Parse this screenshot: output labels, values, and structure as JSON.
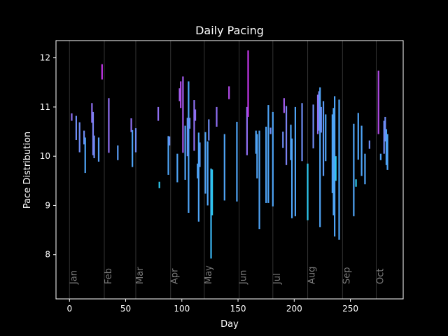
{
  "chart_data": {
    "type": "bar",
    "title": "Daily Pacing",
    "xlabel": "Day",
    "ylabel": "Pace Distribution",
    "xlim": [
      -12,
      297
    ],
    "ylim": [
      7.1,
      12.35
    ],
    "xticks": [
      0,
      50,
      100,
      150,
      200,
      250
    ],
    "yticks": [
      8,
      9,
      10,
      11,
      12
    ],
    "month_markers": [
      {
        "label": "Jan",
        "day": 0
      },
      {
        "label": "Feb",
        "day": 31
      },
      {
        "label": "Mar",
        "day": 59
      },
      {
        "label": "Apr",
        "day": 90
      },
      {
        "label": "May",
        "day": 120
      },
      {
        "label": "Jun",
        "day": 151
      },
      {
        "label": "Jul",
        "day": 181
      },
      {
        "label": "Aug",
        "day": 212
      },
      {
        "label": "Sep",
        "day": 243
      },
      {
        "label": "Oct",
        "day": 273
      }
    ],
    "ranges": [
      {
        "day": 2,
        "low": 10.72,
        "high": 10.87,
        "color": "#8f6ff2"
      },
      {
        "day": 6,
        "low": 10.33,
        "high": 10.82,
        "color": "#6e8cf4"
      },
      {
        "day": 9,
        "low": 10.08,
        "high": 10.69,
        "color": "#6e8cf4"
      },
      {
        "day": 13,
        "low": 10.24,
        "high": 10.52,
        "color": "#6e8cf4"
      },
      {
        "day": 14,
        "low": 9.66,
        "high": 10.38,
        "color": "#4fa4f6"
      },
      {
        "day": 20,
        "low": 10.68,
        "high": 11.08,
        "color": "#8f6ff2"
      },
      {
        "day": 21,
        "low": 10.02,
        "high": 10.9,
        "color": "#7b82f2"
      },
      {
        "day": 22,
        "low": 9.96,
        "high": 10.42,
        "color": "#6e8cf4"
      },
      {
        "day": 26,
        "low": 9.89,
        "high": 10.38,
        "color": "#5a9cf5"
      },
      {
        "day": 29,
        "low": 11.56,
        "high": 11.87,
        "color": "#c236e8"
      },
      {
        "day": 35,
        "low": 10.07,
        "high": 11.18,
        "color": "#8f6ff2"
      },
      {
        "day": 43,
        "low": 9.92,
        "high": 10.22,
        "color": "#5a9cf5"
      },
      {
        "day": 55,
        "low": 10.49,
        "high": 10.77,
        "color": "#8f6ff2"
      },
      {
        "day": 56,
        "low": 9.78,
        "high": 10.53,
        "color": "#4fa4f6"
      },
      {
        "day": 59,
        "low": 10.08,
        "high": 10.57,
        "color": "#6e8cf4"
      },
      {
        "day": 79,
        "low": 10.72,
        "high": 11.0,
        "color": "#8f6ff2"
      },
      {
        "day": 80,
        "low": 9.35,
        "high": 9.48,
        "color": "#2ec9ef"
      },
      {
        "day": 88,
        "low": 9.62,
        "high": 10.41,
        "color": "#4fa4f6"
      },
      {
        "day": 89,
        "low": 10.22,
        "high": 10.4,
        "color": "#6e8cf4"
      },
      {
        "day": 96,
        "low": 9.47,
        "high": 10.05,
        "color": "#4fa4f6"
      },
      {
        "day": 98,
        "low": 11.12,
        "high": 11.38,
        "color": "#a45cef"
      },
      {
        "day": 99,
        "low": 10.98,
        "high": 11.52,
        "color": "#b24be9"
      },
      {
        "day": 101,
        "low": 10.07,
        "high": 11.62,
        "color": "#a45cef"
      },
      {
        "day": 103,
        "low": 9.52,
        "high": 10.62,
        "color": "#4fa4f6"
      },
      {
        "day": 105,
        "low": 10.0,
        "high": 10.78,
        "color": "#6e8cf4"
      },
      {
        "day": 106,
        "low": 8.85,
        "high": 11.52,
        "color": "#4fa4f6"
      },
      {
        "day": 107,
        "low": 10.56,
        "high": 10.78,
        "color": "#6e8cf4"
      },
      {
        "day": 111,
        "low": 10.11,
        "high": 11.14,
        "color": "#8f6ff2"
      },
      {
        "day": 112,
        "low": 10.72,
        "high": 10.95,
        "color": "#8f6ff2"
      },
      {
        "day": 114,
        "low": 9.55,
        "high": 9.85,
        "color": "#4fa4f6"
      },
      {
        "day": 115,
        "low": 8.67,
        "high": 10.48,
        "color": "#4fa4f6"
      },
      {
        "day": 116,
        "low": 9.78,
        "high": 10.28,
        "color": "#5a9cf5"
      },
      {
        "day": 121,
        "low": 9.24,
        "high": 10.49,
        "color": "#4fa4f6"
      },
      {
        "day": 123,
        "low": 9.0,
        "high": 10.3,
        "color": "#4fa4f6"
      },
      {
        "day": 124,
        "low": 10.32,
        "high": 10.75,
        "color": "#6e8cf4"
      },
      {
        "day": 126,
        "low": 7.92,
        "high": 9.75,
        "color": "#3ab6f2"
      },
      {
        "day": 127,
        "low": 8.8,
        "high": 9.73,
        "color": "#2ec9ef"
      },
      {
        "day": 131,
        "low": 10.6,
        "high": 11.0,
        "color": "#8f6ff2"
      },
      {
        "day": 138,
        "low": 9.1,
        "high": 10.45,
        "color": "#4fa4f6"
      },
      {
        "day": 142,
        "low": 11.16,
        "high": 11.42,
        "color": "#b24be9"
      },
      {
        "day": 149,
        "low": 9.08,
        "high": 10.7,
        "color": "#4fa4f6"
      },
      {
        "day": 158,
        "low": 10.02,
        "high": 11.0,
        "color": "#8f6ff2"
      },
      {
        "day": 159,
        "low": 10.8,
        "high": 12.15,
        "color": "#c236e8"
      },
      {
        "day": 166,
        "low": 10.05,
        "high": 10.52,
        "color": "#4fa4f6"
      },
      {
        "day": 167,
        "low": 9.55,
        "high": 10.45,
        "color": "#4fa4f6"
      },
      {
        "day": 169,
        "low": 8.52,
        "high": 10.52,
        "color": "#4fa4f6"
      },
      {
        "day": 175,
        "low": 9.05,
        "high": 10.6,
        "color": "#4fa4f6"
      },
      {
        "day": 177,
        "low": 9.05,
        "high": 11.04,
        "color": "#4fa4f6"
      },
      {
        "day": 179,
        "low": 10.45,
        "high": 10.58,
        "color": "#6e8cf4"
      },
      {
        "day": 181,
        "low": 8.98,
        "high": 10.9,
        "color": "#4fa4f6"
      },
      {
        "day": 190,
        "low": 10.17,
        "high": 10.5,
        "color": "#6e8cf4"
      },
      {
        "day": 191,
        "low": 10.88,
        "high": 11.18,
        "color": "#a45cef"
      },
      {
        "day": 193,
        "low": 9.82,
        "high": 11.02,
        "color": "#7b82f2"
      },
      {
        "day": 197,
        "low": 9.92,
        "high": 10.64,
        "color": "#4fa4f6"
      },
      {
        "day": 198,
        "low": 8.74,
        "high": 10.36,
        "color": "#4fa4f6"
      },
      {
        "day": 201,
        "low": 8.78,
        "high": 11.0,
        "color": "#4fa4f6"
      },
      {
        "day": 207,
        "low": 9.9,
        "high": 11.08,
        "color": "#6e8cf4"
      },
      {
        "day": 212,
        "low": 8.7,
        "high": 9.85,
        "color": "#2ec9ef"
      },
      {
        "day": 217,
        "low": 10.16,
        "high": 11.05,
        "color": "#6e8cf4"
      },
      {
        "day": 221,
        "low": 10.45,
        "high": 11.25,
        "color": "#8f6ff2"
      },
      {
        "day": 222,
        "low": 10.52,
        "high": 11.32,
        "color": "#7b82f2"
      },
      {
        "day": 223,
        "low": 8.56,
        "high": 11.4,
        "color": "#4fa4f6"
      },
      {
        "day": 224,
        "low": 10.48,
        "high": 11.0,
        "color": "#6e8cf4"
      },
      {
        "day": 226,
        "low": 9.6,
        "high": 11.12,
        "color": "#5a9cf5"
      },
      {
        "day": 228,
        "low": 9.9,
        "high": 10.85,
        "color": "#4fa4f6"
      },
      {
        "day": 234,
        "low": 9.25,
        "high": 10.85,
        "color": "#4fa4f6"
      },
      {
        "day": 235,
        "low": 8.8,
        "high": 10.98,
        "color": "#4fa4f6"
      },
      {
        "day": 236,
        "low": 8.37,
        "high": 11.22,
        "color": "#4fa4f6"
      },
      {
        "day": 237,
        "low": 9.5,
        "high": 10.0,
        "color": "#2ec9ef"
      },
      {
        "day": 240,
        "low": 8.3,
        "high": 11.15,
        "color": "#4fa4f6"
      },
      {
        "day": 253,
        "low": 8.78,
        "high": 10.66,
        "color": "#4fa4f6"
      },
      {
        "day": 255,
        "low": 9.38,
        "high": 9.53,
        "color": "#2ec9ef"
      },
      {
        "day": 257,
        "low": 9.93,
        "high": 10.88,
        "color": "#4fa4f6"
      },
      {
        "day": 260,
        "low": 9.6,
        "high": 10.62,
        "color": "#4fa4f6"
      },
      {
        "day": 263,
        "low": 9.43,
        "high": 10.05,
        "color": "#4fa4f6"
      },
      {
        "day": 267,
        "low": 10.15,
        "high": 10.32,
        "color": "#6e8cf4"
      },
      {
        "day": 275,
        "low": 10.45,
        "high": 11.74,
        "color": "#b24be9"
      },
      {
        "day": 277,
        "low": 9.92,
        "high": 10.05,
        "color": "#4fa4f6"
      },
      {
        "day": 280,
        "low": 10.05,
        "high": 10.72,
        "color": "#6e8cf4"
      },
      {
        "day": 281,
        "low": 10.3,
        "high": 10.8,
        "color": "#6e8cf4"
      },
      {
        "day": 282,
        "low": 9.82,
        "high": 10.55,
        "color": "#4fa4f6"
      },
      {
        "day": 283,
        "low": 9.72,
        "high": 10.45,
        "color": "#4fa4f6"
      }
    ],
    "grid": false,
    "background": "#000000",
    "foreground": "#ffffff",
    "month_line_color": "#333333",
    "month_label_color": "#7a7a7a"
  }
}
